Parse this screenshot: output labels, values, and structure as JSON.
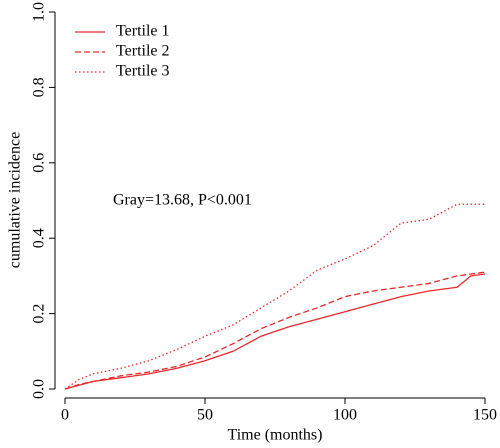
{
  "chart_data": {
    "type": "line",
    "xlabel": "Time (months)",
    "ylabel": "cumulative incidence",
    "annotation": "Gray=13.68,  P<0.001",
    "x": [
      0,
      5,
      10,
      20,
      30,
      40,
      50,
      60,
      70,
      80,
      90,
      100,
      110,
      120,
      130,
      140,
      145,
      150
    ],
    "series": [
      {
        "name": "Tertile 1",
        "color": "#e8292a",
        "dash": "solid",
        "values": [
          0,
          0.01,
          0.02,
          0.03,
          0.04,
          0.055,
          0.075,
          0.1,
          0.14,
          0.165,
          0.185,
          0.205,
          0.225,
          0.245,
          0.26,
          0.27,
          0.3,
          0.305
        ]
      },
      {
        "name": "Tertile 2",
        "color": "#e8292a",
        "dash": "dashed",
        "values": [
          0,
          0.012,
          0.02,
          0.035,
          0.045,
          0.06,
          0.085,
          0.12,
          0.16,
          0.19,
          0.215,
          0.245,
          0.26,
          0.27,
          0.28,
          0.3,
          0.305,
          0.31
        ]
      },
      {
        "name": "Tertile 3",
        "color": "#e8292a",
        "dash": "dotted",
        "values": [
          0,
          0.025,
          0.04,
          0.055,
          0.075,
          0.105,
          0.14,
          0.17,
          0.215,
          0.26,
          0.315,
          0.345,
          0.38,
          0.44,
          0.45,
          0.49,
          0.49,
          0.49
        ]
      }
    ],
    "xlim": [
      0,
      150
    ],
    "xticks": [
      0,
      50,
      100,
      150
    ],
    "ylim": [
      0,
      1
    ],
    "yticks": [
      {
        "value": 0,
        "label": "0.0"
      },
      0.2,
      0.4,
      0.6,
      0.8,
      {
        "value": 1,
        "label": "1.0"
      }
    ],
    "legend": "top-left"
  }
}
